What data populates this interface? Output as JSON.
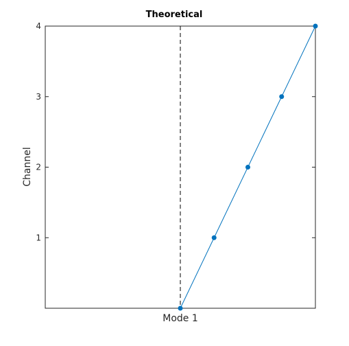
{
  "chart_data": {
    "type": "line",
    "title": "Theoretical",
    "xlabel": "Mode 1",
    "ylabel": "Channel",
    "xlim": [
      -1,
      1
    ],
    "ylim": [
      0,
      4
    ],
    "yticks": [
      1,
      2,
      3,
      4
    ],
    "y_tick_labels": [
      "1",
      "2",
      "3",
      "4"
    ],
    "grid": false,
    "reference_line": {
      "x": 0,
      "style": "dashed",
      "color": "#000000"
    },
    "series": [
      {
        "color": "#0072BD",
        "x": [
          0,
          0.25,
          0.5,
          0.75,
          1.0
        ],
        "y": [
          0,
          1,
          2,
          3,
          4
        ]
      }
    ]
  }
}
